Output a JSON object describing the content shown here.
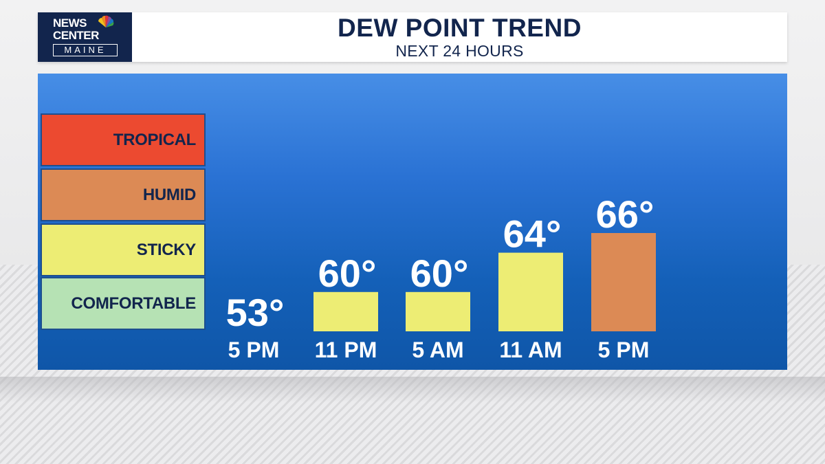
{
  "header": {
    "logo": {
      "line1": "NEWS",
      "line2": "CENTER",
      "line3": "MAINE"
    },
    "title": "DEW POINT TREND",
    "subtitle": "NEXT 24 HOURS"
  },
  "legend": {
    "items": [
      {
        "label": "TROPICAL",
        "color": "#ec4a30"
      },
      {
        "label": "HUMID",
        "color": "#dc8a55"
      },
      {
        "label": "STICKY",
        "color": "#eded74"
      },
      {
        "label": "COMFORTABLE",
        "color": "#b6e2b4"
      }
    ]
  },
  "chart_data": {
    "type": "bar",
    "title": "DEW POINT TREND",
    "subtitle": "NEXT 24 HOURS",
    "categories": [
      "5 PM",
      "11 PM",
      "5 AM",
      "11 AM",
      "5 PM"
    ],
    "values": [
      53,
      60,
      60,
      64,
      66
    ],
    "value_labels": [
      "53°",
      "60°",
      "60°",
      "64°",
      "66°"
    ],
    "bar_colors": [
      "",
      "#eded74",
      "#eded74",
      "#eded74",
      "#dc8a55"
    ],
    "unit": "°",
    "grid": false
  }
}
